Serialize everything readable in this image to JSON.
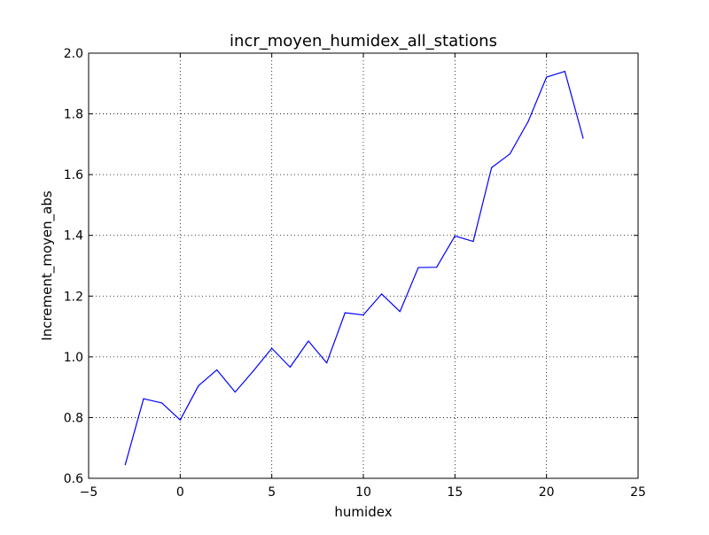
{
  "chart_data": {
    "type": "line",
    "title": "incr_moyen_humidex_all_stations",
    "xlabel": "humidex",
    "ylabel": "Increment_moyen_abs",
    "xlim": [
      -5,
      25
    ],
    "ylim": [
      0.6,
      2.0
    ],
    "xticks": [
      "−5",
      "0",
      "5",
      "10",
      "15",
      "20",
      "25"
    ],
    "yticks": [
      "0.6",
      "0.8",
      "1.0",
      "1.2",
      "1.4",
      "1.6",
      "1.8",
      "2.0"
    ],
    "grid": true,
    "grid_style": "dotted",
    "series": [
      {
        "color": "#0000ff",
        "x": [
          -3,
          -2,
          -1,
          0,
          1,
          2,
          3,
          4,
          5,
          6,
          7,
          8,
          9,
          10,
          11,
          12,
          13,
          14,
          15,
          16,
          17,
          18,
          19,
          20,
          21,
          22
        ],
        "y": [
          0.645,
          0.862,
          0.848,
          0.792,
          0.905,
          0.957,
          0.884,
          0.954,
          1.028,
          0.966,
          1.052,
          0.98,
          1.145,
          1.138,
          1.207,
          1.149,
          1.294,
          1.295,
          1.398,
          1.38,
          1.623,
          1.668,
          1.775,
          1.921,
          1.94,
          1.72
        ]
      }
    ]
  }
}
